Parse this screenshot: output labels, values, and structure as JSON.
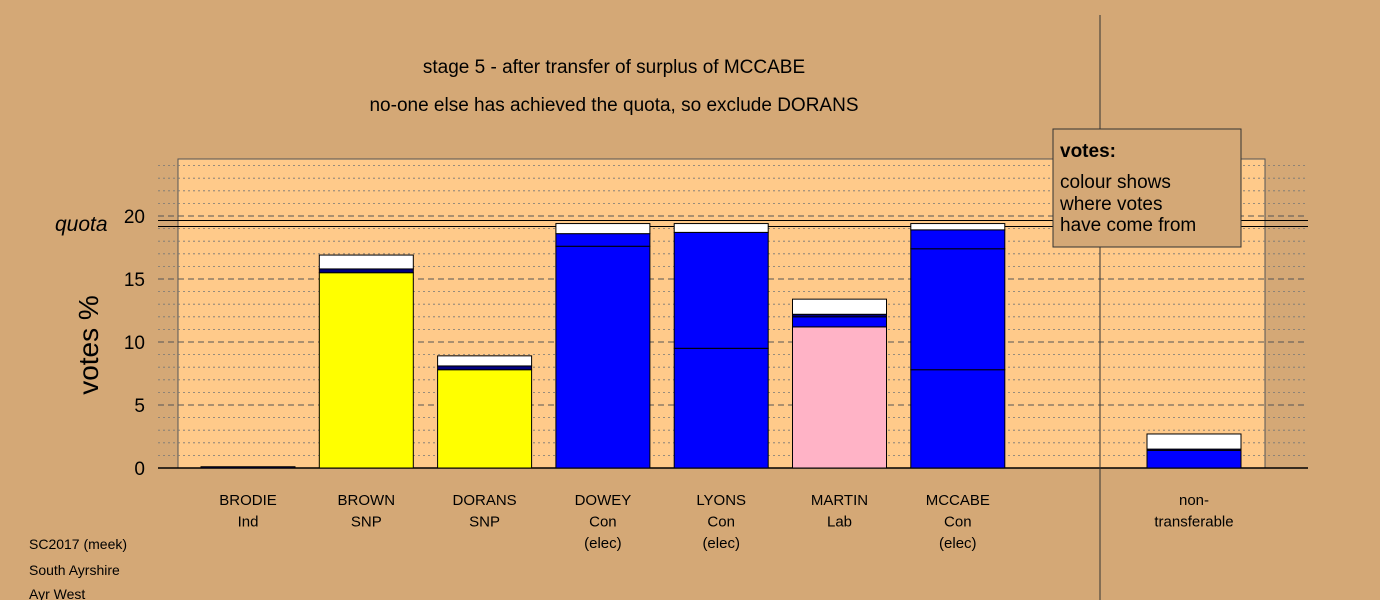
{
  "chart_data": {
    "type": "bar",
    "title": "stage 5 - after transfer of surplus of MCCABE",
    "subtitle": "no-one else has achieved the quota, so exclude DORANS",
    "ylabel": "votes %",
    "ylim": [
      0,
      24
    ],
    "yticks": [
      0,
      5,
      10,
      15,
      20
    ],
    "quota_label": "quota",
    "quota_value": 19.4,
    "candidates": [
      {
        "name": "BRODIE",
        "party": "Ind",
        "status": "",
        "segments": [
          {
            "value": 0.1,
            "color": "#000080"
          }
        ]
      },
      {
        "name": "BROWN",
        "party": "SNP",
        "status": "",
        "segments": [
          {
            "value": 15.5,
            "color": "#ffff00"
          },
          {
            "value": 0.3,
            "color": "#000080"
          },
          {
            "value": 1.1,
            "color": "#ffffff"
          }
        ]
      },
      {
        "name": "DORANS",
        "party": "SNP",
        "status": "",
        "segments": [
          {
            "value": 7.8,
            "color": "#ffff00"
          },
          {
            "value": 0.3,
            "color": "#000080"
          },
          {
            "value": 0.8,
            "color": "#ffffff"
          }
        ]
      },
      {
        "name": "DOWEY",
        "party": "Con",
        "status": "(elec)",
        "segments": [
          {
            "value": 17.6,
            "color": "#0000ff"
          },
          {
            "value": 1.0,
            "color": "#0000ff"
          },
          {
            "value": 0.8,
            "color": "#ffffff"
          }
        ]
      },
      {
        "name": "LYONS",
        "party": "Con",
        "status": "(elec)",
        "segments": [
          {
            "value": 9.5,
            "color": "#0000ff"
          },
          {
            "value": 9.2,
            "color": "#0000ff"
          },
          {
            "value": 0.7,
            "color": "#ffffff"
          }
        ]
      },
      {
        "name": "MARTIN",
        "party": "Lab",
        "status": "",
        "segments": [
          {
            "value": 11.2,
            "color": "#ffb3c6"
          },
          {
            "value": 0.8,
            "color": "#0000ff"
          },
          {
            "value": 0.2,
            "color": "#000080"
          },
          {
            "value": 1.2,
            "color": "#ffffff"
          }
        ]
      },
      {
        "name": "MCCABE",
        "party": "Con",
        "status": "(elec)",
        "segments": [
          {
            "value": 7.8,
            "color": "#0000ff"
          },
          {
            "value": 9.6,
            "color": "#0000ff"
          },
          {
            "value": 1.5,
            "color": "#0000ff"
          },
          {
            "value": 0.5,
            "color": "#ffffff"
          }
        ]
      }
    ],
    "nontransferable": {
      "name": "non-",
      "name2": "transferable",
      "segments": [
        {
          "value": 1.4,
          "color": "#0000ff"
        },
        {
          "value": 0.1,
          "color": "#000080"
        },
        {
          "value": 1.2,
          "color": "#ffffff"
        }
      ]
    },
    "legend": {
      "heading": "votes:",
      "lines": [
        "colour shows",
        "where votes",
        "have come from"
      ]
    }
  },
  "footer": {
    "line1": "SC2017 (meek)",
    "line2": "South Ayrshire",
    "line3": "Ayr West"
  },
  "colors": {
    "background": "#d4a876",
    "plot_area": "#ffca8a"
  }
}
